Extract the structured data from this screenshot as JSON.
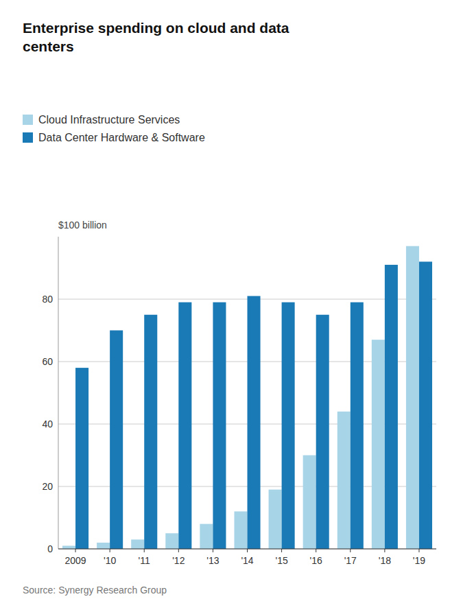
{
  "chart_data": {
    "type": "bar",
    "title": "Enterprise spending on cloud and data\ncenters",
    "ylabel": "$100 billion",
    "source": "Source: Synergy Research Group",
    "categories": [
      "2009",
      "'10",
      "'11",
      "'12",
      "'13",
      "'14",
      "'15",
      "'16",
      "'17",
      "'18",
      "'19"
    ],
    "series": [
      {
        "name": "Cloud Infrastructure Services",
        "color": "#a8d4e8",
        "values": [
          1,
          2,
          3,
          5,
          8,
          12,
          19,
          30,
          44,
          67,
          97
        ]
      },
      {
        "name": "Data Center Hardware & Software",
        "color": "#1a7ab5",
        "values": [
          58,
          70,
          75,
          79,
          79,
          81,
          79,
          75,
          79,
          91,
          92
        ]
      }
    ],
    "ylim": [
      0,
      100
    ],
    "yticks": [
      0,
      20,
      40,
      60,
      80
    ],
    "grid": true,
    "legend": "top-left"
  }
}
